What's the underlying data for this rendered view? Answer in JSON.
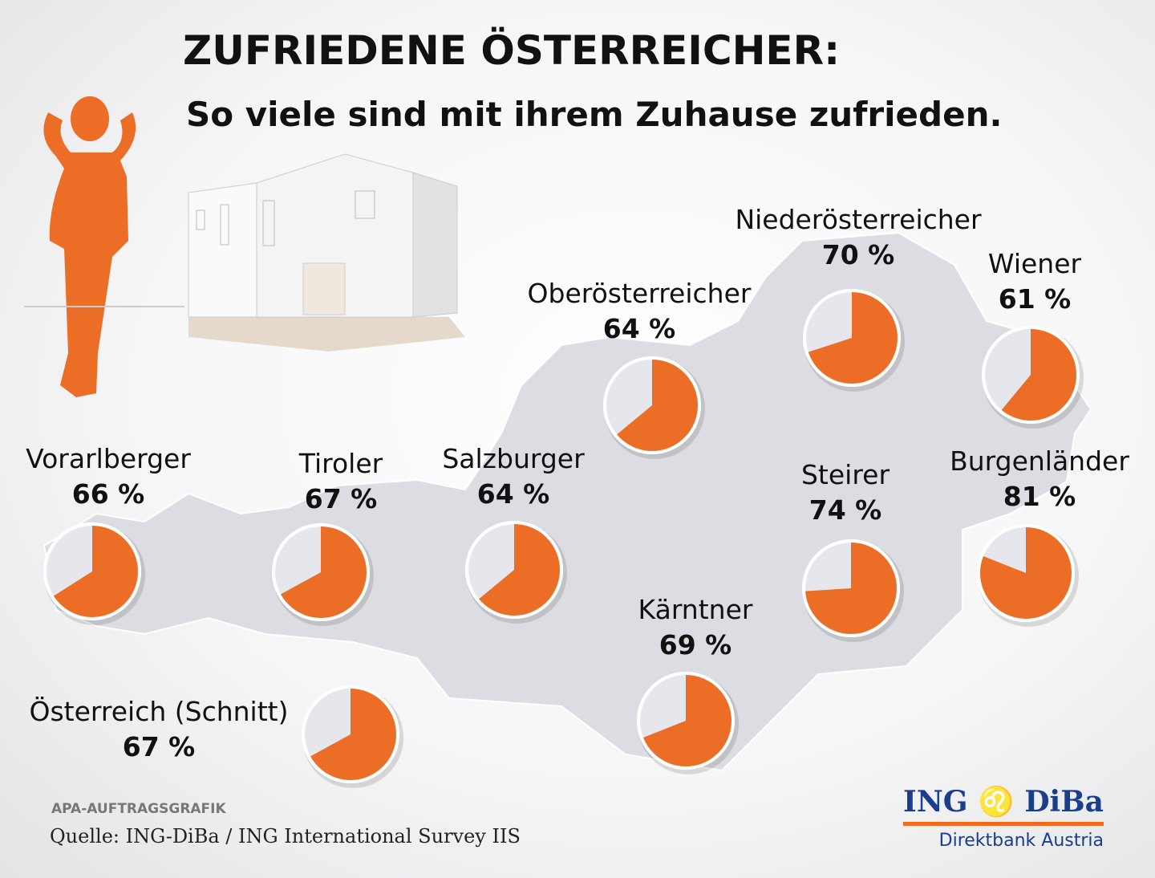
{
  "title": "ZUFRIEDENE ÖSTERREICHER:",
  "subtitle": "So viele sind mit ihrem Zuhause zufrieden.",
  "chart_data": {
    "type": "pie",
    "title": "ZUFRIEDENE ÖSTERREICHER: So viele sind mit ihrem Zuhause zufrieden.",
    "unit": "%",
    "regions": [
      {
        "name": "Vorarlberger",
        "value": 66,
        "label": "66 %"
      },
      {
        "name": "Tiroler",
        "value": 67,
        "label": "67 %"
      },
      {
        "name": "Salzburger",
        "value": 64,
        "label": "64 %"
      },
      {
        "name": "Oberösterreicher",
        "value": 64,
        "label": "64 %"
      },
      {
        "name": "Niederösterreicher",
        "value": 70,
        "label": "70 %"
      },
      {
        "name": "Wiener",
        "value": 61,
        "label": "61 %"
      },
      {
        "name": "Steirer",
        "value": 74,
        "label": "74 %"
      },
      {
        "name": "Burgenländer",
        "value": 81,
        "label": "81 %"
      },
      {
        "name": "Kärntner",
        "value": 69,
        "label": "69 %"
      },
      {
        "name": "Österreich (Schnitt)",
        "value": 67,
        "label": "67 %"
      }
    ],
    "colors": {
      "satisfied": "#ec6d25",
      "rest": "#e6e7ec",
      "map": "#dcdde2"
    }
  },
  "footer": {
    "credit": "APA-AUFTRAGSGRAFIK",
    "source": "Quelle: ING-DiBa / ING International Survey IIS"
  },
  "logo": {
    "left": "ING",
    "right": "DiBa",
    "sub": "Direktbank Austria"
  }
}
